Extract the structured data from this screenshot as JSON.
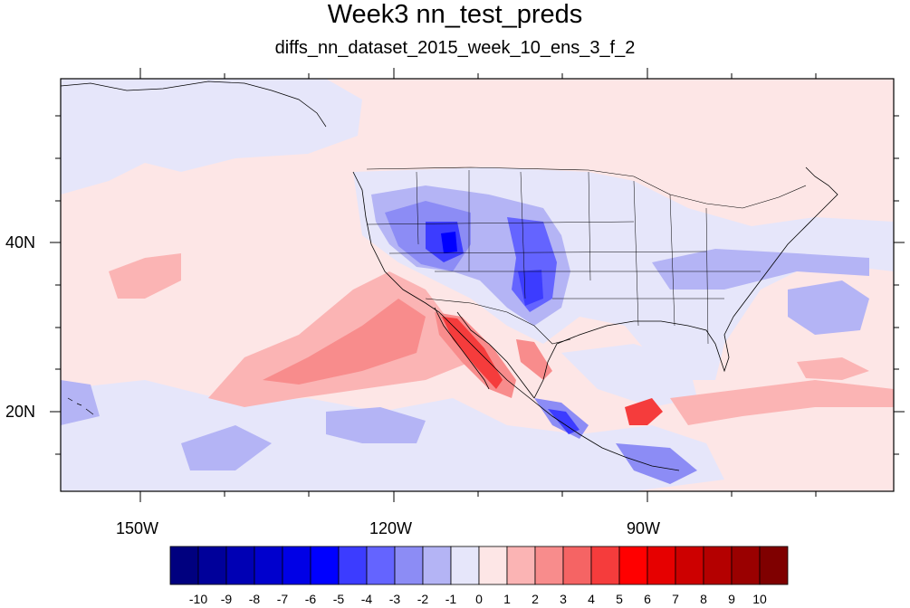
{
  "title": "Week3 nn_test_preds",
  "subtitle": "diffs_nn_dataset_2015_week_10_ens_3_f_2",
  "axes": {
    "x_ticks": [
      "150W",
      "120W",
      "90W"
    ],
    "y_ticks": [
      "40N",
      "20N"
    ]
  },
  "colorbar": {
    "labels": [
      "-10",
      "-9",
      "-8",
      "-7",
      "-6",
      "-5",
      "-4",
      "-3",
      "-2",
      "-1",
      "0",
      "1",
      "2",
      "3",
      "4",
      "5",
      "6",
      "7",
      "8",
      "9",
      "10"
    ],
    "colors": [
      "#00007f",
      "#00009a",
      "#0000b4",
      "#0000cd",
      "#0000e6",
      "#0000ff",
      "#3c3cff",
      "#6464ff",
      "#8c8cf5",
      "#b4b4f5",
      "#e6e6fa",
      "#fde6e6",
      "#fbb4b4",
      "#f88c8c",
      "#f56464",
      "#f53c3c",
      "#ff0000",
      "#e60000",
      "#cd0000",
      "#b40000",
      "#9a0000",
      "#7f0000"
    ]
  }
}
